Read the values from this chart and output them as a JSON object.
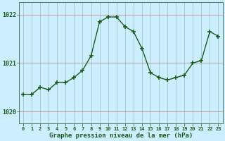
{
  "x": [
    0,
    1,
    2,
    3,
    4,
    5,
    6,
    7,
    8,
    9,
    10,
    11,
    12,
    13,
    14,
    15,
    16,
    17,
    18,
    19,
    20,
    21,
    22,
    23
  ],
  "y": [
    1020.35,
    1020.35,
    1020.5,
    1020.45,
    1020.6,
    1020.6,
    1020.7,
    1020.85,
    1021.15,
    1021.85,
    1021.95,
    1021.95,
    1021.75,
    1021.65,
    1021.3,
    1020.8,
    1020.7,
    1020.65,
    1020.7,
    1020.75,
    1021.0,
    1021.05,
    1021.65,
    1021.55
  ],
  "line_color": "#1a5c1a",
  "marker_color": "#1a5c1a",
  "bg_color": "#cceeff",
  "grid_color": "#99cccc",
  "xlabel": "Graphe pression niveau de la mer (hPa)",
  "yticks": [
    1020,
    1021,
    1022
  ],
  "ylim": [
    1019.75,
    1022.25
  ],
  "xlim": [
    -0.5,
    23.5
  ],
  "axis_color": "#1a5c1a",
  "spine_color": "#557755",
  "xtick_fontsize": 5.0,
  "ytick_fontsize": 6.0,
  "xlabel_fontsize": 6.5
}
